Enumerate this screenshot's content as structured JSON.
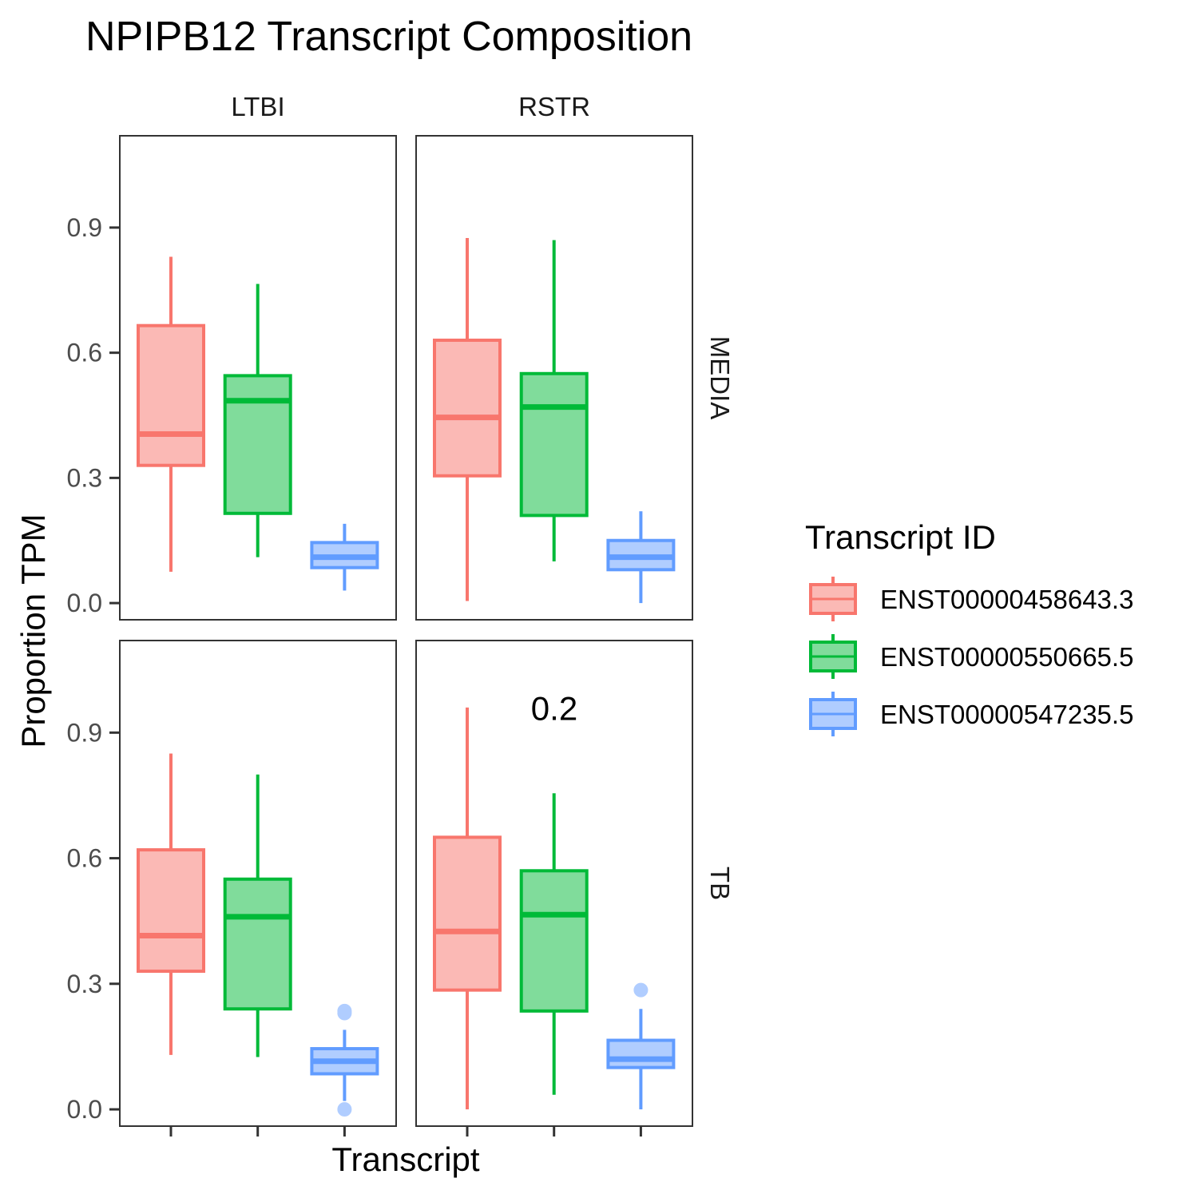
{
  "chart_data": {
    "type": "boxplot",
    "title": "NPIPB12 Transcript Composition",
    "xlabel": "Transcript",
    "ylabel": "Proportion TPM",
    "ylim": [
      -0.04,
      1.12
    ],
    "yticks": [
      "0.0",
      "0.3",
      "0.6",
      "0.9"
    ],
    "ytick_values": [
      0,
      0.3,
      0.6,
      0.9
    ],
    "columns": [
      "LTBI",
      "RSTR"
    ],
    "rows": [
      "MEDIA",
      "TB"
    ],
    "legend": {
      "title": "Transcript ID",
      "position": "right",
      "entries": [
        "ENST00000458643.3",
        "ENST00000550665.5",
        "ENST00000547235.5"
      ]
    },
    "colors": [
      "#F8766D",
      "#00BA38",
      "#619CFF"
    ],
    "fills": [
      "#FBB9B5",
      "#80DC9B",
      "#B0CDFF"
    ],
    "panels": [
      {
        "col": "LTBI",
        "row": "MEDIA",
        "annotation": "",
        "boxes": [
          {
            "transcript": "ENST00000458643.3",
            "lower": 0.075,
            "q1": 0.33,
            "median": 0.405,
            "q3": 0.665,
            "upper": 0.83,
            "outliers": []
          },
          {
            "transcript": "ENST00000550665.5",
            "lower": 0.11,
            "q1": 0.215,
            "median": 0.485,
            "q3": 0.545,
            "upper": 0.765,
            "outliers": []
          },
          {
            "transcript": "ENST00000547235.5",
            "lower": 0.03,
            "q1": 0.085,
            "median": 0.11,
            "q3": 0.145,
            "upper": 0.19,
            "outliers": []
          }
        ]
      },
      {
        "col": "RSTR",
        "row": "MEDIA",
        "annotation": "",
        "boxes": [
          {
            "transcript": "ENST00000458643.3",
            "lower": 0.005,
            "q1": 0.305,
            "median": 0.445,
            "q3": 0.63,
            "upper": 0.875,
            "outliers": []
          },
          {
            "transcript": "ENST00000550665.5",
            "lower": 0.1,
            "q1": 0.21,
            "median": 0.47,
            "q3": 0.55,
            "upper": 0.87,
            "outliers": []
          },
          {
            "transcript": "ENST00000547235.5",
            "lower": 0.0,
            "q1": 0.08,
            "median": 0.11,
            "q3": 0.15,
            "upper": 0.22,
            "outliers": []
          }
        ]
      },
      {
        "col": "LTBI",
        "row": "TB",
        "annotation": "",
        "boxes": [
          {
            "transcript": "ENST00000458643.3",
            "lower": 0.13,
            "q1": 0.33,
            "median": 0.415,
            "q3": 0.62,
            "upper": 0.85,
            "outliers": []
          },
          {
            "transcript": "ENST00000550665.5",
            "lower": 0.125,
            "q1": 0.24,
            "median": 0.46,
            "q3": 0.55,
            "upper": 0.8,
            "outliers": []
          },
          {
            "transcript": "ENST00000547235.5",
            "lower": 0.02,
            "q1": 0.085,
            "median": 0.115,
            "q3": 0.145,
            "upper": 0.19,
            "outliers": [
              0.23,
              0.235,
              0.0
            ]
          }
        ]
      },
      {
        "col": "RSTR",
        "row": "TB",
        "annotation": "0.2",
        "boxes": [
          {
            "transcript": "ENST00000458643.3",
            "lower": 0.0,
            "q1": 0.285,
            "median": 0.425,
            "q3": 0.65,
            "upper": 0.96,
            "outliers": []
          },
          {
            "transcript": "ENST00000550665.5",
            "lower": 0.035,
            "q1": 0.235,
            "median": 0.465,
            "q3": 0.57,
            "upper": 0.755,
            "outliers": []
          },
          {
            "transcript": "ENST00000547235.5",
            "lower": 0.0,
            "q1": 0.1,
            "median": 0.12,
            "q3": 0.165,
            "upper": 0.24,
            "outliers": [
              0.285
            ]
          }
        ]
      }
    ]
  }
}
